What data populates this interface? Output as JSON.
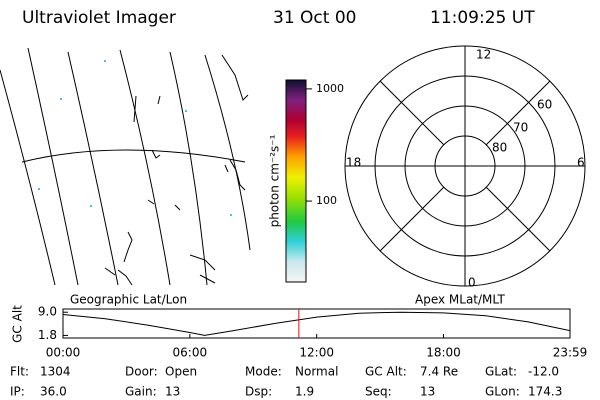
{
  "header": {
    "title": "Ultraviolet Imager",
    "date": "31 Oct 00",
    "time": "11:09:25 UT"
  },
  "map_label": "Geographic Lat/Lon",
  "polar": {
    "label": "Apex MLat/MLT",
    "mlt_labels": [
      "12",
      "18",
      "6",
      "0"
    ],
    "mlat_labels": [
      "60",
      "70",
      "80"
    ]
  },
  "chart_data": [
    {
      "type": "colorbar",
      "ylabel": "photon cm⁻²s⁻¹",
      "log_scale": true,
      "ylim": [
        19,
        1200
      ],
      "yticks": [
        100,
        1000
      ]
    },
    {
      "type": "line",
      "ylabel": "GC Alt",
      "color": "#000000",
      "x": [
        0,
        2,
        4,
        6,
        6.7,
        8,
        10,
        12,
        14,
        16,
        18,
        20,
        22,
        23.983
      ],
      "values": [
        8.3,
        7.0,
        5.0,
        2.7,
        1.8,
        3.2,
        5.5,
        7.5,
        8.7,
        9.0,
        8.8,
        7.9,
        6.0,
        3.3
      ],
      "xlim": [
        0,
        23.983
      ],
      "xticks": [
        {
          "value": 0,
          "label": "00:00"
        },
        {
          "value": 6,
          "label": "06:00"
        },
        {
          "value": 12,
          "label": "12:00"
        },
        {
          "value": 18,
          "label": "18:00"
        },
        {
          "value": 23.983,
          "label": "23:59"
        }
      ],
      "ylim": [
        1.0,
        10.0
      ],
      "yticks": [
        {
          "value": 1.8,
          "label": "1.8"
        },
        {
          "value": 9.0,
          "label": "9.0"
        }
      ],
      "marker": 11.157,
      "marker_color": "#ff0000"
    }
  ],
  "status": [
    [
      [
        "Flt:",
        "1304"
      ],
      [
        "Door:",
        "Open"
      ],
      [
        "Mode:",
        "Normal"
      ],
      [
        "GC Alt:",
        "7.4 Re"
      ],
      [
        "GLat:",
        "-12.0"
      ]
    ],
    [
      [
        "IP:",
        "36.0"
      ],
      [
        "Gain:",
        "13"
      ],
      [
        "Dsp:",
        "1.9"
      ],
      [
        "Seq:",
        "13"
      ],
      [
        "GLon:",
        "174.3"
      ]
    ]
  ]
}
